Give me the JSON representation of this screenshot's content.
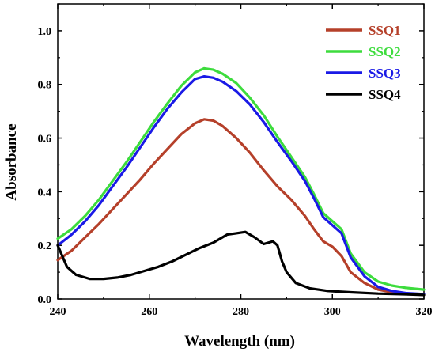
{
  "chart_data": {
    "type": "line",
    "xlabel": "Wavelength (nm)",
    "ylabel": "Absorbance",
    "xlim": [
      240,
      320
    ],
    "ylim": [
      0.0,
      1.1
    ],
    "x_ticks": [
      "240",
      "260",
      "280",
      "300",
      "320"
    ],
    "y_ticks": [
      "0.0",
      "0.2",
      "0.4",
      "0.6",
      "0.8",
      "1.0"
    ],
    "grid": false,
    "legend_position": "top-right",
    "series": [
      {
        "name": "SSQ1",
        "color": "#b5402a",
        "points": [
          [
            240,
            0.145
          ],
          [
            243,
            0.18
          ],
          [
            246,
            0.23
          ],
          [
            249,
            0.28
          ],
          [
            252,
            0.335
          ],
          [
            255,
            0.39
          ],
          [
            258,
            0.445
          ],
          [
            261,
            0.505
          ],
          [
            264,
            0.56
          ],
          [
            267,
            0.615
          ],
          [
            270,
            0.655
          ],
          [
            272,
            0.67
          ],
          [
            274,
            0.665
          ],
          [
            276,
            0.645
          ],
          [
            279,
            0.6
          ],
          [
            282,
            0.545
          ],
          [
            285,
            0.48
          ],
          [
            288,
            0.42
          ],
          [
            291,
            0.37
          ],
          [
            294,
            0.31
          ],
          [
            296,
            0.26
          ],
          [
            298,
            0.215
          ],
          [
            300,
            0.195
          ],
          [
            302,
            0.16
          ],
          [
            304,
            0.1
          ],
          [
            307,
            0.06
          ],
          [
            310,
            0.035
          ],
          [
            313,
            0.025
          ],
          [
            316,
            0.02
          ],
          [
            320,
            0.015
          ]
        ]
      },
      {
        "name": "SSQ2",
        "color": "#3ddc3d",
        "points": [
          [
            240,
            0.225
          ],
          [
            243,
            0.26
          ],
          [
            246,
            0.31
          ],
          [
            249,
            0.37
          ],
          [
            252,
            0.44
          ],
          [
            255,
            0.51
          ],
          [
            258,
            0.585
          ],
          [
            261,
            0.66
          ],
          [
            264,
            0.73
          ],
          [
            267,
            0.795
          ],
          [
            270,
            0.845
          ],
          [
            272,
            0.86
          ],
          [
            274,
            0.855
          ],
          [
            276,
            0.84
          ],
          [
            279,
            0.805
          ],
          [
            282,
            0.75
          ],
          [
            285,
            0.685
          ],
          [
            288,
            0.605
          ],
          [
            291,
            0.53
          ],
          [
            294,
            0.455
          ],
          [
            296,
            0.39
          ],
          [
            298,
            0.32
          ],
          [
            300,
            0.29
          ],
          [
            302,
            0.26
          ],
          [
            304,
            0.17
          ],
          [
            307,
            0.1
          ],
          [
            310,
            0.065
          ],
          [
            313,
            0.05
          ],
          [
            316,
            0.042
          ],
          [
            320,
            0.035
          ]
        ]
      },
      {
        "name": "SSQ3",
        "color": "#1a1ae6",
        "points": [
          [
            240,
            0.2
          ],
          [
            243,
            0.24
          ],
          [
            246,
            0.29
          ],
          [
            249,
            0.35
          ],
          [
            252,
            0.42
          ],
          [
            255,
            0.49
          ],
          [
            258,
            0.565
          ],
          [
            261,
            0.64
          ],
          [
            264,
            0.71
          ],
          [
            267,
            0.77
          ],
          [
            270,
            0.82
          ],
          [
            272,
            0.83
          ],
          [
            274,
            0.825
          ],
          [
            276,
            0.81
          ],
          [
            279,
            0.775
          ],
          [
            282,
            0.725
          ],
          [
            285,
            0.66
          ],
          [
            288,
            0.585
          ],
          [
            291,
            0.515
          ],
          [
            294,
            0.44
          ],
          [
            296,
            0.375
          ],
          [
            298,
            0.305
          ],
          [
            300,
            0.275
          ],
          [
            302,
            0.245
          ],
          [
            304,
            0.155
          ],
          [
            307,
            0.085
          ],
          [
            310,
            0.045
          ],
          [
            313,
            0.03
          ],
          [
            316,
            0.022
          ],
          [
            320,
            0.018
          ]
        ]
      },
      {
        "name": "SSQ4",
        "color": "#000000",
        "points": [
          [
            240,
            0.2
          ],
          [
            242,
            0.12
          ],
          [
            244,
            0.09
          ],
          [
            247,
            0.075
          ],
          [
            250,
            0.075
          ],
          [
            253,
            0.08
          ],
          [
            256,
            0.09
          ],
          [
            259,
            0.105
          ],
          [
            262,
            0.12
          ],
          [
            265,
            0.14
          ],
          [
            268,
            0.165
          ],
          [
            271,
            0.19
          ],
          [
            274,
            0.21
          ],
          [
            277,
            0.24
          ],
          [
            279,
            0.245
          ],
          [
            281,
            0.25
          ],
          [
            283,
            0.23
          ],
          [
            285,
            0.205
          ],
          [
            287,
            0.215
          ],
          [
            288,
            0.2
          ],
          [
            289,
            0.14
          ],
          [
            290,
            0.1
          ],
          [
            292,
            0.06
          ],
          [
            295,
            0.04
          ],
          [
            299,
            0.03
          ],
          [
            304,
            0.025
          ],
          [
            310,
            0.02
          ],
          [
            315,
            0.018
          ],
          [
            320,
            0.015
          ]
        ]
      }
    ]
  }
}
